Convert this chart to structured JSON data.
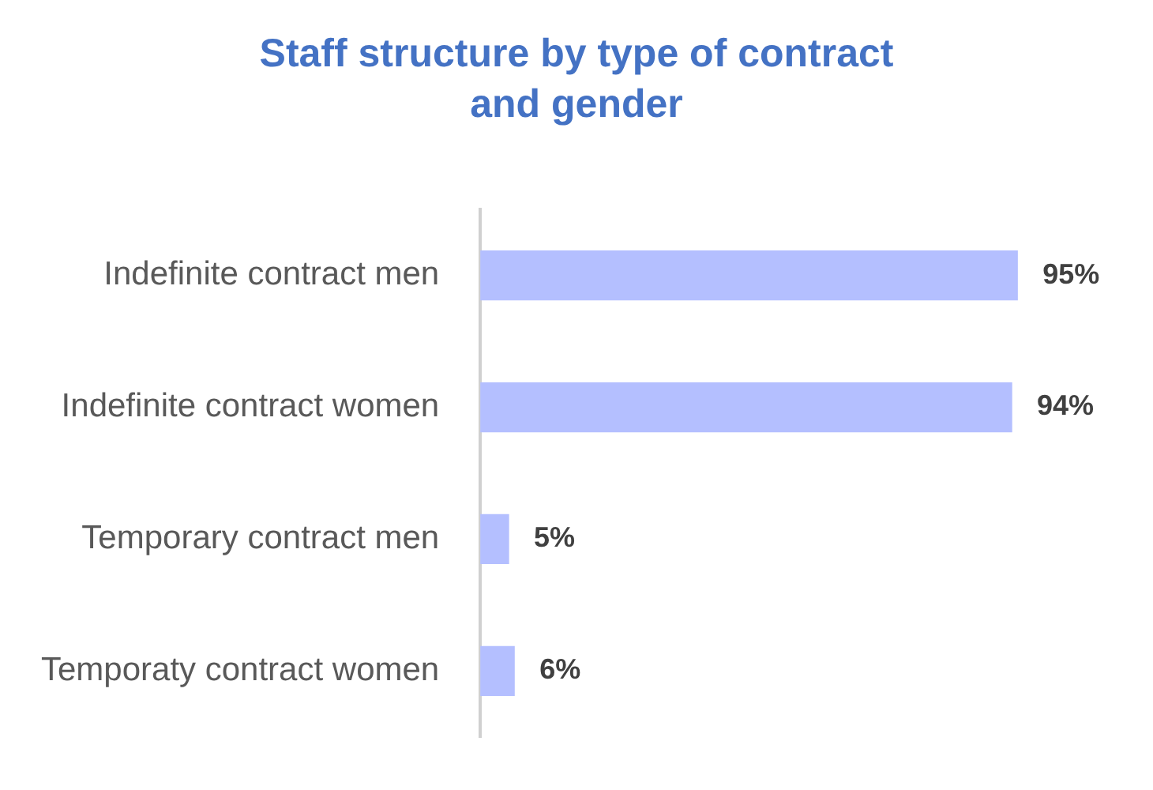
{
  "chart_data": {
    "type": "bar",
    "orientation": "horizontal",
    "title": "Staff structure by type of contract and gender",
    "categories": [
      "Indefinite contract men",
      "Indefinite contract women",
      "Temporary contract men",
      "Temporaty contract women"
    ],
    "values": [
      95,
      94,
      5,
      6
    ],
    "color": "#b4bfff",
    "value_labels": [
      "95%",
      "94%",
      "5%",
      "6%"
    ],
    "grid": false,
    "legend": false,
    "tick_labels": "y"
  }
}
